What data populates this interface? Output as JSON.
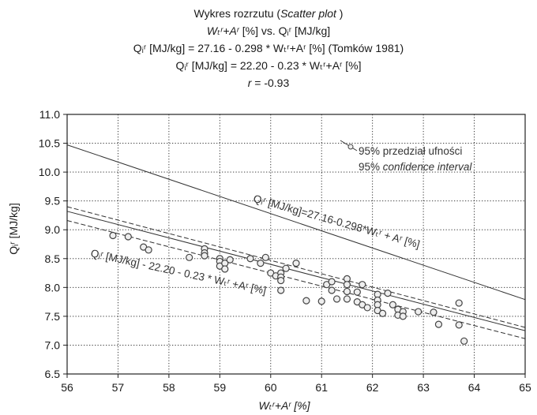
{
  "chart_data": {
    "type": "scatter",
    "title_lines": [
      {
        "pre": "Wykres rozrzutu (",
        "it": "Scatter plot",
        "post": " )"
      },
      {
        "pre": "",
        "it": "Wₜʳ+Aʳ",
        "post": " [%] vs. Qᵢʳ [MJ/kg]"
      },
      {
        "pre": "Qᵢʳ [MJ/kg] = 27.16 - 0.298 *  Wₜʳ+Aʳ [%] (Tomków 1981)",
        "it": "",
        "post": ""
      },
      {
        "pre": "Qᵢʳ [MJ/kg] = 22.20 - 0.23 *  Wₜʳ+Aʳ [%]",
        "it": "",
        "post": ""
      },
      {
        "pre": "",
        "it": "r",
        "post": " =  -0.93"
      }
    ],
    "xlabel": "Wₜʳ+Aʳ [%]",
    "ylabel": "Qᵢʳ [MJ/kg]",
    "xlim": [
      56,
      65
    ],
    "ylim": [
      6.5,
      11.0
    ],
    "x_ticks": [
      56,
      57,
      58,
      59,
      60,
      61,
      62,
      63,
      64,
      65
    ],
    "y_ticks": [
      "6.5",
      "7.0",
      "7.5",
      "8.0",
      "8.5",
      "9.0",
      "9.5",
      "10.0",
      "10.5",
      "11.0"
    ],
    "grid": "dotted",
    "points": [
      {
        "x": 56.9,
        "y": 8.9
      },
      {
        "x": 57.2,
        "y": 8.88
      },
      {
        "x": 57.5,
        "y": 8.7
      },
      {
        "x": 57.6,
        "y": 8.65
      },
      {
        "x": 58.4,
        "y": 8.52
      },
      {
        "x": 58.7,
        "y": 8.67
      },
      {
        "x": 58.7,
        "y": 8.6
      },
      {
        "x": 58.7,
        "y": 8.55
      },
      {
        "x": 59.0,
        "y": 8.5
      },
      {
        "x": 59.0,
        "y": 8.45
      },
      {
        "x": 59.0,
        "y": 8.37
      },
      {
        "x": 59.1,
        "y": 8.42
      },
      {
        "x": 59.1,
        "y": 8.32
      },
      {
        "x": 59.2,
        "y": 8.48
      },
      {
        "x": 59.6,
        "y": 8.5
      },
      {
        "x": 59.8,
        "y": 8.42
      },
      {
        "x": 59.9,
        "y": 8.52
      },
      {
        "x": 60.0,
        "y": 8.25
      },
      {
        "x": 60.1,
        "y": 8.2
      },
      {
        "x": 60.2,
        "y": 8.25
      },
      {
        "x": 60.2,
        "y": 8.18
      },
      {
        "x": 60.2,
        "y": 8.12
      },
      {
        "x": 60.3,
        "y": 8.33
      },
      {
        "x": 60.5,
        "y": 8.42
      },
      {
        "x": 60.2,
        "y": 7.95
      },
      {
        "x": 60.7,
        "y": 7.77
      },
      {
        "x": 61.0,
        "y": 7.76
      },
      {
        "x": 61.1,
        "y": 8.05
      },
      {
        "x": 61.2,
        "y": 8.1
      },
      {
        "x": 61.2,
        "y": 7.95
      },
      {
        "x": 61.3,
        "y": 7.8
      },
      {
        "x": 61.5,
        "y": 8.15
      },
      {
        "x": 61.5,
        "y": 8.05
      },
      {
        "x": 61.5,
        "y": 7.93
      },
      {
        "x": 61.5,
        "y": 7.8
      },
      {
        "x": 61.7,
        "y": 7.92
      },
      {
        "x": 61.7,
        "y": 7.75
      },
      {
        "x": 61.8,
        "y": 8.05
      },
      {
        "x": 61.8,
        "y": 7.7
      },
      {
        "x": 61.9,
        "y": 7.65
      },
      {
        "x": 62.1,
        "y": 7.88
      },
      {
        "x": 62.1,
        "y": 7.78
      },
      {
        "x": 62.1,
        "y": 7.7
      },
      {
        "x": 62.1,
        "y": 7.6
      },
      {
        "x": 62.2,
        "y": 7.55
      },
      {
        "x": 62.3,
        "y": 7.9
      },
      {
        "x": 62.4,
        "y": 7.7
      },
      {
        "x": 62.5,
        "y": 7.62
      },
      {
        "x": 62.5,
        "y": 7.52
      },
      {
        "x": 62.6,
        "y": 7.58
      },
      {
        "x": 62.6,
        "y": 7.5
      },
      {
        "x": 62.9,
        "y": 7.58
      },
      {
        "x": 63.2,
        "y": 7.57
      },
      {
        "x": 63.3,
        "y": 7.36
      },
      {
        "x": 63.7,
        "y": 7.73
      },
      {
        "x": 63.7,
        "y": 7.35
      },
      {
        "x": 63.8,
        "y": 7.07
      }
    ],
    "lines": [
      {
        "name": "Tomków 1981",
        "intercept": 27.16,
        "slope": -0.298,
        "style": "solid"
      },
      {
        "name": "fit",
        "intercept": 22.2,
        "slope": -0.23,
        "style": "solid"
      },
      {
        "name": "95% confidence interval upper",
        "intercept": 22.42,
        "slope": -0.2325,
        "style": "dashed"
      },
      {
        "name": "95% confidence interval lower",
        "intercept": 21.9,
        "slope": -0.2275,
        "style": "dashed"
      }
    ],
    "line_labels": {
      "tomkow": "Qᵢʳ [MJ/kg]=27.16-0.298*Wₜʳ + Aʳ [%]",
      "fit": "Qᵢʳ [MJ/kg] - 22.20 - 0.23 * Wₜʳ +Aʳ [%]"
    },
    "legend": {
      "line1": "95% przedział ufności",
      "line2_pre": "95%  ",
      "line2_it": "confidence interval"
    },
    "colors": {
      "line": "#333333",
      "grid": "#222222",
      "marker_stroke": "#444444",
      "marker_fill": "#eeeeee"
    }
  }
}
